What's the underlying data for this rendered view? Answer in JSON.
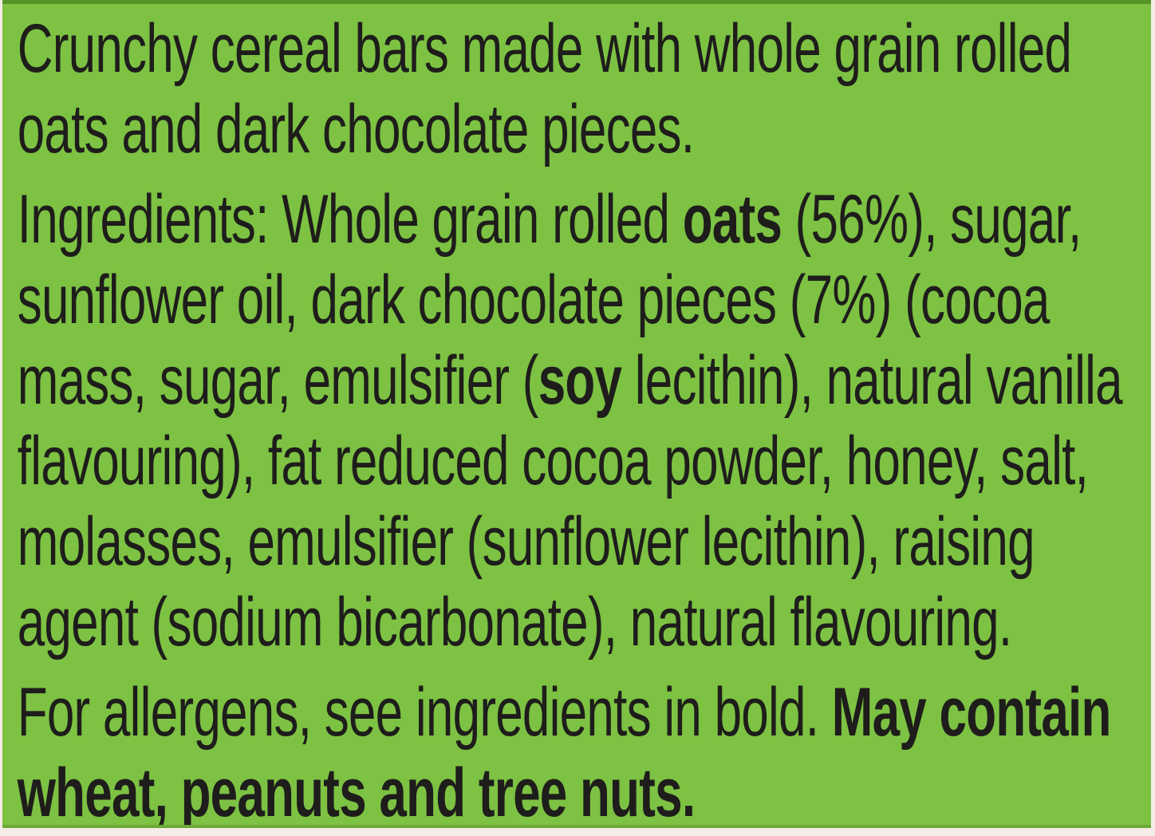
{
  "colors": {
    "panel_green": "#7dc243",
    "panel_top_edge_green": "#559426",
    "panel_bottom_edge_green": "#6ba838",
    "photo_edge": "#f3ece8",
    "text_black": "#1e1d1b"
  },
  "paragraphs": [
    {
      "name": "product-description",
      "segments": [
        {
          "text": "Crunchy cereal bars made with whole grain rolled oats and dark chocolate pieces.",
          "bold": false
        }
      ]
    },
    {
      "name": "ingredients-list",
      "segments": [
        {
          "text": "Ingredients: Whole grain rolled ",
          "bold": false
        },
        {
          "text": "oats",
          "bold": true
        },
        {
          "text": " (56%), sugar, sunflower oil, dark chocolate pieces (7%) (cocoa mass, sugar, emulsifier (",
          "bold": false
        },
        {
          "text": "soy",
          "bold": true
        },
        {
          "text": " lecithin), natural vanilla flavouring), fat reduced cocoa powder, honey, salt, molasses, emulsifier (sunflower lecithin), raising agent (sodium bicarbonate), natural flavouring.",
          "bold": false
        }
      ]
    },
    {
      "name": "allergen-advice",
      "segments": [
        {
          "text": "For allergens, see ingredients in bold. ",
          "bold": false
        },
        {
          "text": "May contain wheat, peanuts and tree nuts.",
          "bold": true
        }
      ]
    }
  ]
}
